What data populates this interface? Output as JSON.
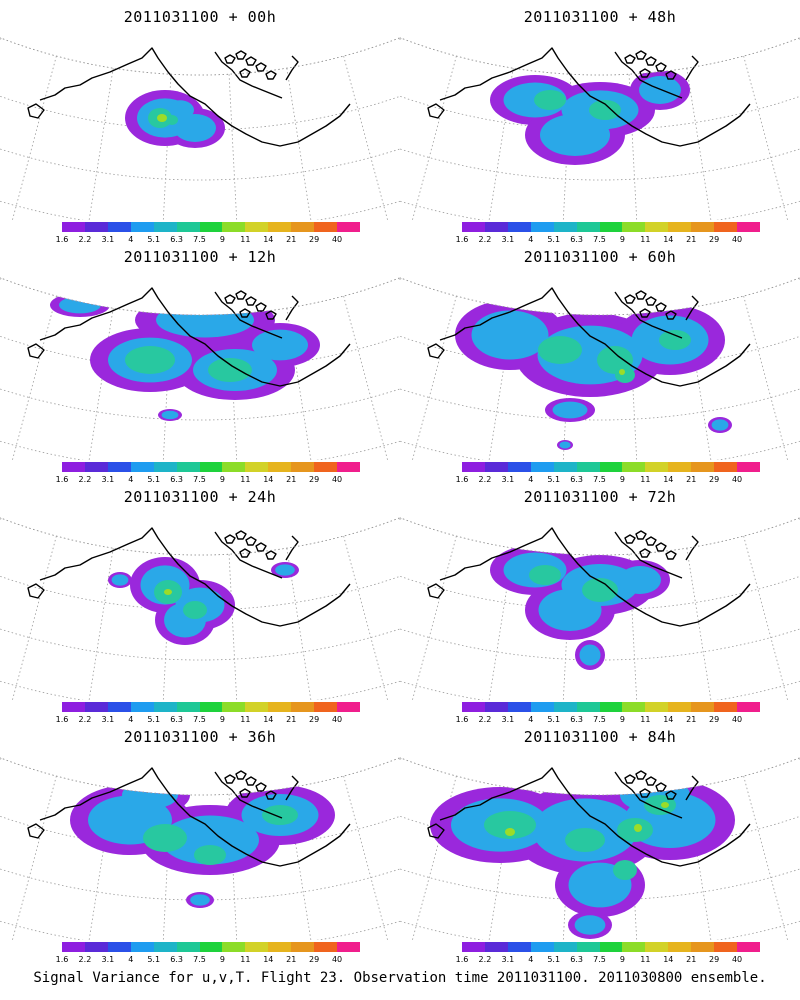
{
  "panels": [
    {
      "title": "2011031100 + 00h",
      "level": 0
    },
    {
      "title": "2011031100 + 48h",
      "level": 4
    },
    {
      "title": "2011031100 + 12h",
      "level": 1
    },
    {
      "title": "2011031100 + 60h",
      "level": 5
    },
    {
      "title": "2011031100 + 24h",
      "level": 2
    },
    {
      "title": "2011031100 + 72h",
      "level": 6
    },
    {
      "title": "2011031100 + 36h",
      "level": 3
    },
    {
      "title": "2011031100 + 84h",
      "level": 7
    }
  ],
  "colorbar": {
    "labels": [
      "1.6",
      "2.2",
      "3.1",
      "4",
      "5.1",
      "6.3",
      "7.5",
      "9",
      "11",
      "14",
      "21",
      "29",
      "40"
    ],
    "colors": [
      "#8e1ee0",
      "#5a2ad8",
      "#2a50e8",
      "#1e9cf0",
      "#1eb4c8",
      "#1ec896",
      "#1ed23c",
      "#8cdc28",
      "#d2d228",
      "#e6b41e",
      "#e6961e",
      "#f0641e",
      "#f01e8c"
    ]
  },
  "footer": "Signal Variance for u,v,T. Flight 23. Observation time 2011031100. 2011030800 ensemble."
}
